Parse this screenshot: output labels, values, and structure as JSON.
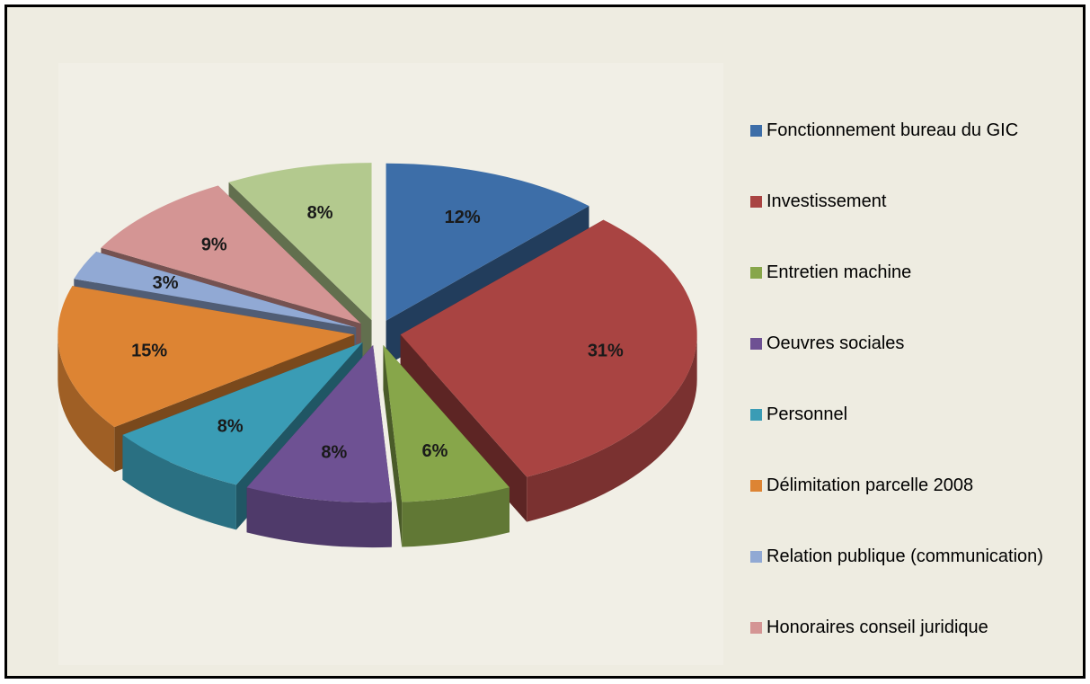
{
  "chart_data": {
    "type": "pie",
    "view": "3d-exploded",
    "categories": [
      "Fonctionnement bureau du GIC",
      "Investissement",
      "Entretien machine",
      "Oeuvres sociales",
      "Personnel",
      "Délimitation parcelle 2008",
      "Relation publique (communication)",
      "Honoraires conseil juridique",
      null
    ],
    "values": [
      12,
      31,
      6,
      8,
      8,
      15,
      3,
      9,
      8
    ],
    "value_labels": [
      "12%",
      "31%",
      "6%",
      "8%",
      "8%",
      "15%",
      "3%",
      "9%",
      "8%"
    ],
    "colors": [
      "#3d6ea8",
      "#a94442",
      "#87a64a",
      "#6e5193",
      "#3a9cb5",
      "#dd8433",
      "#91a9d4",
      "#d49594",
      "#b3c98e"
    ],
    "legend": "right"
  }
}
